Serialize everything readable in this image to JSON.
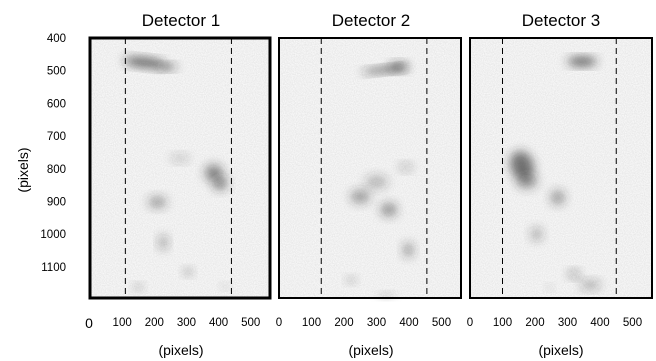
{
  "figure": {
    "y_axis_label": "(pixels)",
    "x_axis_label": "(pixels)",
    "origin_label": "0",
    "y_ticks": [
      "400",
      "500",
      "600",
      "700",
      "800",
      "900",
      "1000",
      "1100"
    ],
    "x_ticks": [
      "100",
      "200",
      "300",
      "400",
      "500"
    ],
    "panel_x_start_tick": "0",
    "colors": {
      "frame": "#000000",
      "blob": "#2a2a2a",
      "background": "#ffffff"
    }
  },
  "panels": [
    {
      "id": "detector-1",
      "title": "Detector 1",
      "dashed_lines_x": [
        110,
        440
      ],
      "blobs": [
        {
          "x": 170,
          "y": 475,
          "rx": 65,
          "ry": 14,
          "rot": 6,
          "o": 0.75
        },
        {
          "x": 240,
          "y": 488,
          "rx": 30,
          "ry": 10,
          "rot": 0,
          "o": 0.6
        },
        {
          "x": 280,
          "y": 768,
          "rx": 28,
          "ry": 12,
          "rot": 0,
          "o": 0.25
        },
        {
          "x": 385,
          "y": 812,
          "rx": 28,
          "ry": 25,
          "rot": 0,
          "o": 0.55
        },
        {
          "x": 405,
          "y": 845,
          "rx": 22,
          "ry": 20,
          "rot": 0,
          "o": 0.55
        },
        {
          "x": 210,
          "y": 902,
          "rx": 28,
          "ry": 17,
          "rot": 0,
          "o": 0.45
        },
        {
          "x": 228,
          "y": 1025,
          "rx": 14,
          "ry": 22,
          "rot": 0,
          "o": 0.4
        },
        {
          "x": 305,
          "y": 1115,
          "rx": 14,
          "ry": 11,
          "rot": 0,
          "o": 0.35
        },
        {
          "x": 150,
          "y": 1162,
          "rx": 14,
          "ry": 10,
          "rot": 0,
          "o": 0.3
        },
        {
          "x": 420,
          "y": 1160,
          "rx": 12,
          "ry": 8,
          "rot": 0,
          "o": 0.2
        }
      ]
    },
    {
      "id": "detector-2",
      "title": "Detector 2",
      "dashed_lines_x": [
        130,
        455
      ],
      "blobs": [
        {
          "x": 325,
          "y": 497,
          "rx": 70,
          "ry": 10,
          "rot": -6,
          "o": 0.6
        },
        {
          "x": 368,
          "y": 488,
          "rx": 28,
          "ry": 13,
          "rot": 0,
          "o": 0.6
        },
        {
          "x": 390,
          "y": 795,
          "rx": 20,
          "ry": 12,
          "rot": 0,
          "o": 0.3
        },
        {
          "x": 300,
          "y": 840,
          "rx": 35,
          "ry": 20,
          "rot": 0,
          "o": 0.3
        },
        {
          "x": 250,
          "y": 885,
          "rx": 30,
          "ry": 20,
          "rot": 0,
          "o": 0.45
        },
        {
          "x": 338,
          "y": 925,
          "rx": 25,
          "ry": 20,
          "rot": 0,
          "o": 0.5
        },
        {
          "x": 398,
          "y": 1048,
          "rx": 16,
          "ry": 22,
          "rot": 0,
          "o": 0.45
        },
        {
          "x": 222,
          "y": 1140,
          "rx": 14,
          "ry": 10,
          "rot": 0,
          "o": 0.3
        },
        {
          "x": 330,
          "y": 1188,
          "rx": 26,
          "ry": 8,
          "rot": 0,
          "o": 0.2
        }
      ]
    },
    {
      "id": "detector-3",
      "title": "Detector 3",
      "dashed_lines_x": [
        100,
        450
      ],
      "blobs": [
        {
          "x": 345,
          "y": 472,
          "rx": 45,
          "ry": 13,
          "rot": 0,
          "o": 0.8
        },
        {
          "x": 160,
          "y": 790,
          "rx": 35,
          "ry": 45,
          "rot": -20,
          "o": 0.65
        },
        {
          "x": 175,
          "y": 838,
          "rx": 32,
          "ry": 22,
          "rot": 0,
          "o": 0.45
        },
        {
          "x": 270,
          "y": 888,
          "rx": 22,
          "ry": 22,
          "rot": 0,
          "o": 0.45
        },
        {
          "x": 205,
          "y": 1000,
          "rx": 18,
          "ry": 20,
          "rot": 0,
          "o": 0.35
        },
        {
          "x": 320,
          "y": 1122,
          "rx": 18,
          "ry": 12,
          "rot": 0,
          "o": 0.4
        },
        {
          "x": 370,
          "y": 1155,
          "rx": 32,
          "ry": 14,
          "rot": 0,
          "o": 0.35
        },
        {
          "x": 245,
          "y": 1163,
          "rx": 10,
          "ry": 8,
          "rot": 0,
          "o": 0.2
        }
      ]
    }
  ]
}
